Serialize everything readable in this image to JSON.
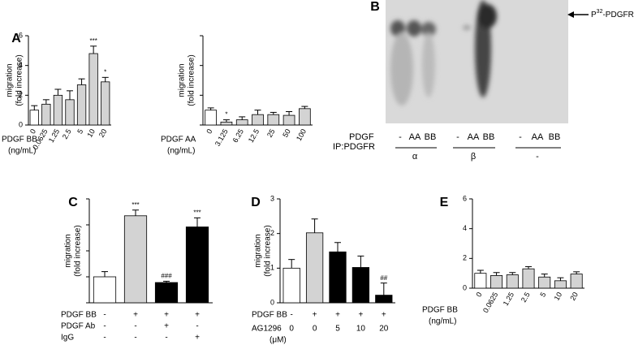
{
  "chart_data": [
    {
      "type": "bar",
      "panel_label": "A",
      "y_label": [
        "migration",
        "(fold increase)"
      ],
      "x_label": [
        "PDGF BB",
        "(ng/mL)"
      ],
      "categories": [
        "0",
        "0.0625",
        "1.25",
        "2.5",
        "5",
        "10",
        "20"
      ],
      "values": [
        1.0,
        1.4,
        2.0,
        1.7,
        2.7,
        4.8,
        2.9
      ],
      "errors": [
        0.3,
        0.3,
        0.4,
        0.6,
        0.4,
        0.5,
        0.3
      ],
      "colors": [
        "#ffffff",
        "#d3d3d3",
        "#d3d3d3",
        "#d3d3d3",
        "#d3d3d3",
        "#d3d3d3",
        "#d3d3d3"
      ],
      "annotations": [
        null,
        null,
        null,
        null,
        null,
        "***",
        "*"
      ],
      "ylim": [
        0,
        6
      ],
      "yticks": [
        0,
        2,
        4,
        6
      ],
      "ytick_labels": true
    },
    {
      "type": "bar",
      "y_label": [
        "migration",
        "(fold increase)"
      ],
      "x_label": [
        "PDGF AA",
        "(ng/mL)"
      ],
      "categories": [
        "0",
        "3.125",
        "6.25",
        "12.5",
        "25",
        "50",
        "100"
      ],
      "values": [
        1.0,
        0.2,
        0.35,
        0.7,
        0.7,
        0.65,
        1.1
      ],
      "errors": [
        0.15,
        0.15,
        0.2,
        0.3,
        0.15,
        0.25,
        0.15
      ],
      "colors": [
        "#ffffff",
        "#d3d3d3",
        "#d3d3d3",
        "#d3d3d3",
        "#d3d3d3",
        "#d3d3d3",
        "#d3d3d3"
      ],
      "annotations": [
        null,
        "*",
        null,
        null,
        null,
        null,
        null
      ],
      "ylim": [
        0,
        6
      ],
      "yticks": [
        0,
        2,
        4,
        6
      ],
      "ytick_labels": false
    },
    {
      "type": "blot",
      "panel_label": "B",
      "band_label": {
        "base": "P",
        "superscript": "32",
        "rest": "-PDGFR"
      },
      "row_labels": [
        "PDGF",
        "IP:PDGFR"
      ],
      "lanes": [
        "-",
        "AA",
        "BB",
        "-",
        "AA",
        "BB",
        "-",
        "AA",
        "BB"
      ],
      "groups": [
        "α",
        "β",
        "-"
      ]
    },
    {
      "type": "bar",
      "panel_label": "C",
      "y_label": [
        "migration",
        "(fold increase)"
      ],
      "values": [
        1.0,
        3.35,
        0.78,
        2.92
      ],
      "errors": [
        0.2,
        0.22,
        0.05,
        0.35
      ],
      "colors": [
        "#ffffff",
        "#d3d3d3",
        "#000000",
        "#000000"
      ],
      "annotations": [
        null,
        "***",
        "###",
        "***"
      ],
      "conditions": [
        {
          "name": "PDGF BB",
          "values": [
            "-",
            "+",
            "+",
            "+"
          ]
        },
        {
          "name": "PDGF Ab",
          "values": [
            "-",
            "-",
            "+",
            "-"
          ]
        },
        {
          "name": "IgG",
          "values": [
            "-",
            "-",
            "-",
            "+"
          ]
        }
      ],
      "ylim": [
        0,
        4
      ],
      "yticks": [
        0,
        1,
        2,
        3,
        4
      ],
      "ytick_labels": false
    },
    {
      "type": "bar",
      "panel_label": "D",
      "y_label": [
        "migration",
        "(fold increase)"
      ],
      "values": [
        1.0,
        2.02,
        1.47,
        1.02,
        0.22
      ],
      "errors": [
        0.25,
        0.4,
        0.27,
        0.33,
        0.35
      ],
      "colors": [
        "#ffffff",
        "#d3d3d3",
        "#000000",
        "#000000",
        "#000000"
      ],
      "annotations": [
        null,
        null,
        null,
        null,
        "##"
      ],
      "conditions": [
        {
          "name": "PDGF BB",
          "values": [
            "-",
            "+",
            "+",
            "+",
            "+"
          ]
        },
        {
          "name": "AG1296",
          "unit": "(μM)",
          "values": [
            "0",
            "0",
            "5",
            "10",
            "20"
          ]
        }
      ],
      "ylim": [
        0,
        3
      ],
      "yticks": [
        0,
        1,
        2,
        3
      ],
      "ytick_labels": true
    },
    {
      "type": "bar",
      "panel_label": "E",
      "x_label": [
        "PDGF BB",
        "(ng/mL)"
      ],
      "categories": [
        "0",
        "0.0625",
        "1.25",
        "2.5",
        "5",
        "10",
        "20"
      ],
      "values": [
        1.0,
        0.85,
        0.9,
        1.3,
        0.75,
        0.5,
        0.95
      ],
      "errors": [
        0.2,
        0.2,
        0.15,
        0.15,
        0.2,
        0.2,
        0.15
      ],
      "colors": [
        "#ffffff",
        "#d3d3d3",
        "#d3d3d3",
        "#d3d3d3",
        "#d3d3d3",
        "#d3d3d3",
        "#d3d3d3"
      ],
      "annotations": [
        null,
        null,
        null,
        null,
        null,
        null,
        null
      ],
      "ylim": [
        0,
        6
      ],
      "yticks": [
        0,
        2,
        4,
        6
      ],
      "ytick_labels": true
    }
  ]
}
